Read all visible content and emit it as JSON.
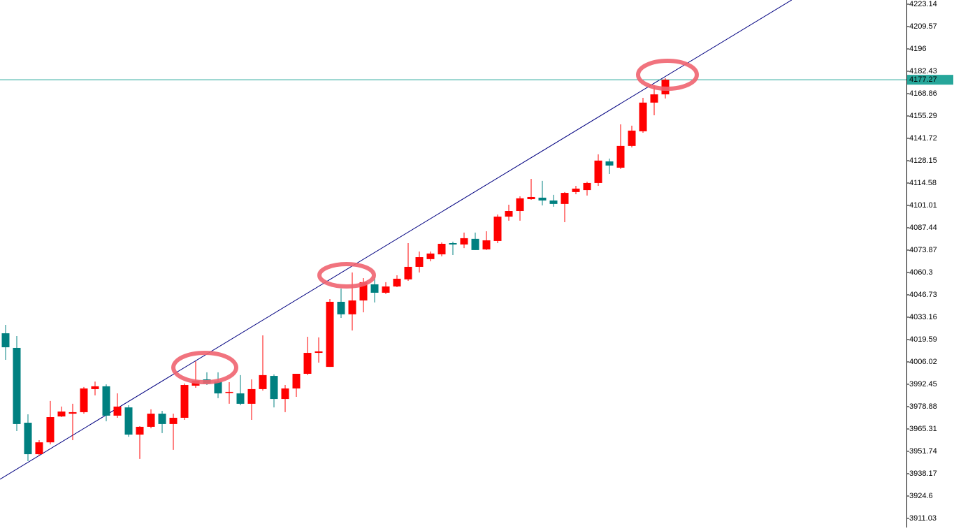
{
  "chart_data": {
    "type": "candlestick",
    "up_color": "#ff0000",
    "down_color": "#008080",
    "ylim": [
      3905.5,
      4225.68
    ],
    "yticks": [
      4223.14,
      4209.57,
      4196.0,
      4182.43,
      4168.86,
      4155.29,
      4141.72,
      4128.15,
      4114.58,
      4101.01,
      4087.44,
      4073.87,
      4060.3,
      4046.73,
      4033.16,
      4019.59,
      4006.02,
      3992.45,
      3978.88,
      3965.31,
      3951.74,
      3938.17,
      3924.6,
      3911.03
    ],
    "last_price": 4177.27,
    "last_price_color": "#26a69a",
    "trend_line": {
      "x": [
        -0.5,
        70.3
      ],
      "y": [
        3934.8,
        4225.7
      ],
      "color": "#000080"
    },
    "open": [
      4023.4,
      4014.5,
      3969.1,
      3950.0,
      3957.2,
      3972.9,
      3974.6,
      3975.5,
      3989.5,
      3991.2,
      3973.4,
      3978.4,
      3961.9,
      3966.6,
      3974.6,
      3968.3,
      3972.1,
      3991.6,
      3995.4,
      3994.1,
      3987.4,
      3986.9,
      3980.6,
      3989.5,
      3997.5,
      3983.5,
      3989.9,
      3998.8,
      4011.5,
      4003.0,
      4042.5,
      4034.9,
      4043.3,
      4053.1,
      4048.0,
      4051.8,
      4056.1,
      4063.7,
      4068.4,
      4071.3,
      4078.1,
      4077.3,
      4080.7,
      4074.3,
      4079.4,
      4094.2,
      4097.6,
      4104.8,
      4105.7,
      4104.0,
      4101.9,
      4109.1,
      4110.3,
      4114.6,
      4127.7,
      4123.9,
      4137.1,
      4146.0,
      4163.4,
      4168.4
    ],
    "high": [
      4028.5,
      4021.7,
      3974.2,
      3958.5,
      3982.3,
      3978.9,
      3980.6,
      3990.8,
      3994.1,
      3992.4,
      3986.9,
      3979.7,
      3967.0,
      3977.2,
      3976.3,
      3974.6,
      3992.9,
      4006.4,
      3999.7,
      3999.7,
      3993.7,
      3998.0,
      3995.4,
      4022.1,
      3998.4,
      3992.0,
      3998.8,
      4021.3,
      4020.9,
      4044.2,
      4050.5,
      4060.3,
      4056.9,
      4057.3,
      4054.4,
      4058.6,
      4078.1,
      4073.0,
      4073.0,
      4078.5,
      4079.0,
      4084.5,
      4084.5,
      4085.3,
      4095.5,
      4101.4,
      4106.5,
      4117.1,
      4115.9,
      4107.4,
      4109.1,
      4112.9,
      4115.4,
      4132.0,
      4129.4,
      4150.2,
      4149.4,
      4166.3,
      4174.0,
      4178.2
    ],
    "low": [
      4007.3,
      3964.0,
      3945.8,
      3949.2,
      3956.0,
      3972.5,
      3958.5,
      3974.6,
      3985.7,
      3970.0,
      3972.1,
      3960.6,
      3947.1,
      3965.7,
      3962.8,
      3952.6,
      3970.8,
      3990.3,
      3992.0,
      3984.0,
      3980.6,
      3979.7,
      3970.8,
      3988.6,
      3978.4,
      3975.5,
      3984.8,
      3998.0,
      4005.6,
      4003.0,
      4032.7,
      4025.1,
      4036.1,
      4042.1,
      4047.2,
      4051.4,
      4055.2,
      4060.3,
      4067.1,
      4070.1,
      4070.9,
      4075.1,
      4073.9,
      4073.9,
      4078.1,
      4091.7,
      4091.7,
      4104.4,
      4101.0,
      4100.2,
      4090.8,
      4107.8,
      4107.0,
      4112.9,
      4120.1,
      4123.1,
      4136.2,
      4145.1,
      4155.7,
      4165.9
    ],
    "close": [
      4014.9,
      3968.3,
      3950.0,
      3957.2,
      3972.5,
      3975.9,
      3975.5,
      3989.9,
      3991.2,
      3973.4,
      3978.9,
      3961.9,
      3966.6,
      3974.6,
      3968.3,
      3972.1,
      3992.0,
      3994.6,
      3992.9,
      3986.9,
      3987.8,
      3980.6,
      3989.5,
      3998.0,
      3983.5,
      3989.9,
      3998.8,
      4011.5,
      4012.4,
      4042.5,
      4034.9,
      4043.3,
      4054.4,
      4048.0,
      4051.8,
      4056.5,
      4063.7,
      4069.6,
      4071.8,
      4077.7,
      4077.3,
      4081.1,
      4073.9,
      4079.8,
      4094.2,
      4097.6,
      4105.3,
      4106.1,
      4104.0,
      4101.9,
      4108.6,
      4111.2,
      4114.6,
      4128.2,
      4125.2,
      4137.1,
      4146.4,
      4163.4,
      4168.4,
      4177.27
    ]
  }
}
